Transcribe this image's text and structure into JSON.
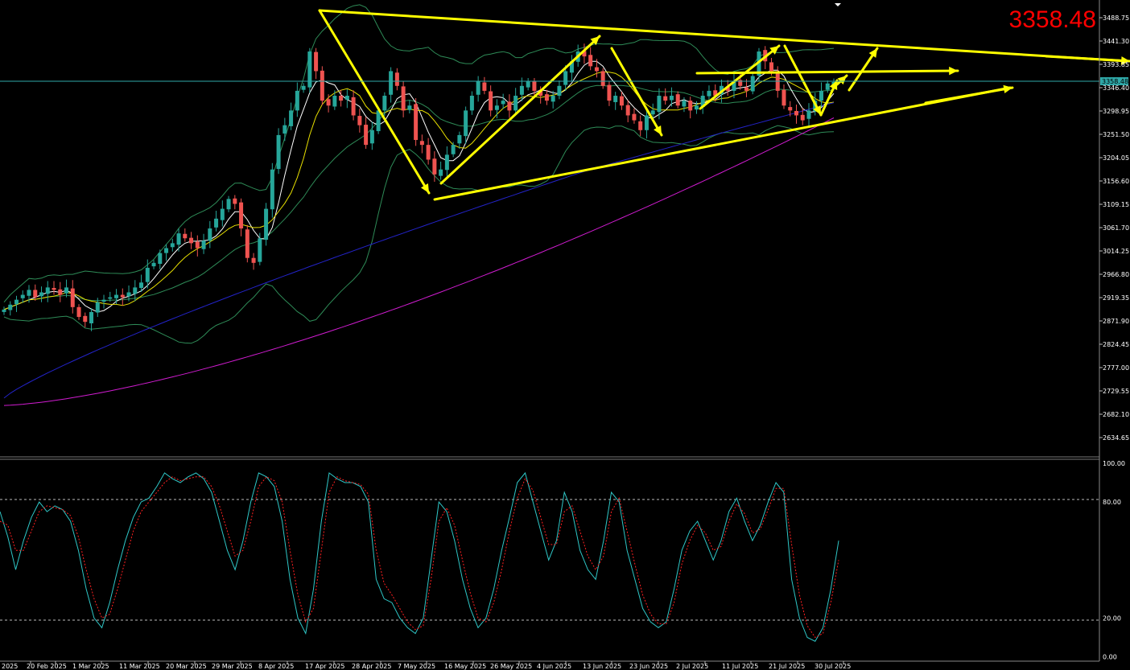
{
  "price_display": "3358.48",
  "colors": {
    "background": "#000000",
    "bull_candle": "#26a69a",
    "bear_candle": "#ef5350",
    "sma_fast": "#ffffff",
    "sma_mid": "#e8e000",
    "ma_long": "#2323c8",
    "ma_200": "#d01cd0",
    "bollinger": "#2e8b57",
    "trendline": "#ffff00",
    "stoch_main": "#2fc7c7",
    "stoch_signal": "#ff2020",
    "price_line": "#2fa8a8"
  },
  "chart_data": [
    {
      "type": "candlestick",
      "price_axis_ticks": [
        "3488.75",
        "3441.30",
        "3393.85",
        "3346.40",
        "3298.95",
        "3251.50",
        "3204.05",
        "3156.60",
        "3109.15",
        "3061.70",
        "3014.25",
        "2966.80",
        "2919.35",
        "2871.90",
        "2824.45",
        "2777.00",
        "2729.55",
        "2682.10",
        "2634.65"
      ],
      "current_price_label": "3358.48",
      "date_axis_ticks": [
        "2025",
        "20 Feb 2025",
        "1 Mar 2025",
        "11 Mar 2025",
        "20 Mar 2025",
        "29 Mar 2025",
        "8 Apr 2025",
        "17 Apr 2025",
        "28 Apr 2025",
        "7 May 2025",
        "16 May 2025",
        "26 May 2025",
        "4 Jun 2025",
        "13 Jun 2025",
        "23 Jun 2025",
        "2 Jul 2025",
        "11 Jul 2025",
        "21 Jul 2025",
        "30 Jul 2025"
      ],
      "ylim": [
        2600,
        3515
      ],
      "close_path": [
        2895,
        2905,
        2915,
        2925,
        2935,
        2920,
        2930,
        2940,
        2935,
        2925,
        2940,
        2900,
        2880,
        2870,
        2890,
        2910,
        2915,
        2920,
        2925,
        2920,
        2930,
        2940,
        2950,
        2980,
        2990,
        3010,
        3020,
        3030,
        3050,
        3040,
        3030,
        3020,
        3035,
        3060,
        3080,
        3100,
        3120,
        3110,
        3060,
        3000,
        2990,
        3040,
        3100,
        3180,
        3250,
        3270,
        3300,
        3340,
        3350,
        3420,
        3380,
        3320,
        3310,
        3330,
        3320,
        3330,
        3290,
        3270,
        3230,
        3260,
        3300,
        3330,
        3380,
        3350,
        3300,
        3310,
        3240,
        3230,
        3200,
        3170,
        3180,
        3210,
        3230,
        3250,
        3300,
        3330,
        3360,
        3340,
        3300,
        3310,
        3320,
        3300,
        3330,
        3350,
        3360,
        3340,
        3330,
        3320,
        3330,
        3350,
        3380,
        3400,
        3420,
        3410,
        3390,
        3380,
        3350,
        3320,
        3330,
        3310,
        3290,
        3280,
        3260,
        3290,
        3300,
        3330,
        3320,
        3330,
        3310,
        3320,
        3300,
        3310,
        3330,
        3340,
        3330,
        3350,
        3340,
        3360,
        3350,
        3340,
        3370,
        3420,
        3400,
        3380,
        3340,
        3310,
        3300,
        3290,
        3280,
        3300,
        3320,
        3340,
        3355,
        3358
      ]
    },
    {
      "type": "line",
      "name": "stochastic",
      "yticks": [
        "100.00",
        "80.00",
        "20.00",
        "0.00"
      ],
      "ylim": [
        0,
        100
      ],
      "series": [
        {
          "values": [
            75,
            62,
            45,
            60,
            72,
            80,
            75,
            78,
            76,
            70,
            55,
            35,
            20,
            15,
            28,
            45,
            60,
            72,
            80,
            82,
            88,
            95,
            92,
            90,
            93,
            95,
            92,
            85,
            70,
            55,
            45,
            60,
            80,
            95,
            93,
            88,
            70,
            40,
            20,
            12,
            35,
            70,
            95,
            92,
            90,
            90,
            88,
            80,
            40,
            30,
            28,
            20,
            15,
            12,
            20,
            50,
            80,
            75,
            60,
            40,
            25,
            15,
            20,
            35,
            55,
            72,
            90,
            95,
            80,
            65,
            50,
            60,
            85,
            75,
            55,
            45,
            40,
            60,
            85,
            80,
            55,
            40,
            25,
            18,
            15,
            18,
            35,
            55,
            65,
            70,
            60,
            50,
            60,
            75,
            82,
            70,
            60,
            68,
            80,
            90,
            85,
            40,
            20,
            10,
            8,
            15,
            35,
            60
          ]
        },
        {
          "values": [
            70,
            68,
            55,
            55,
            65,
            75,
            78,
            77,
            76,
            73,
            62,
            45,
            30,
            20,
            22,
            35,
            50,
            65,
            75,
            80,
            85,
            90,
            93,
            91,
            92,
            93,
            93,
            88,
            78,
            65,
            52,
            55,
            70,
            88,
            93,
            91,
            80,
            55,
            32,
            18,
            25,
            55,
            85,
            93,
            91,
            90,
            89,
            84,
            55,
            38,
            32,
            25,
            18,
            14,
            16,
            40,
            70,
            77,
            68,
            50,
            33,
            20,
            18,
            28,
            45,
            65,
            82,
            92,
            86,
            72,
            58,
            58,
            75,
            78,
            65,
            52,
            45,
            52,
            75,
            82,
            65,
            48,
            32,
            22,
            17,
            17,
            28,
            48,
            60,
            68,
            64,
            55,
            57,
            70,
            79,
            74,
            64,
            66,
            76,
            87,
            87,
            58,
            32,
            16,
            10,
            12,
            28,
            50
          ]
        }
      ]
    }
  ]
}
